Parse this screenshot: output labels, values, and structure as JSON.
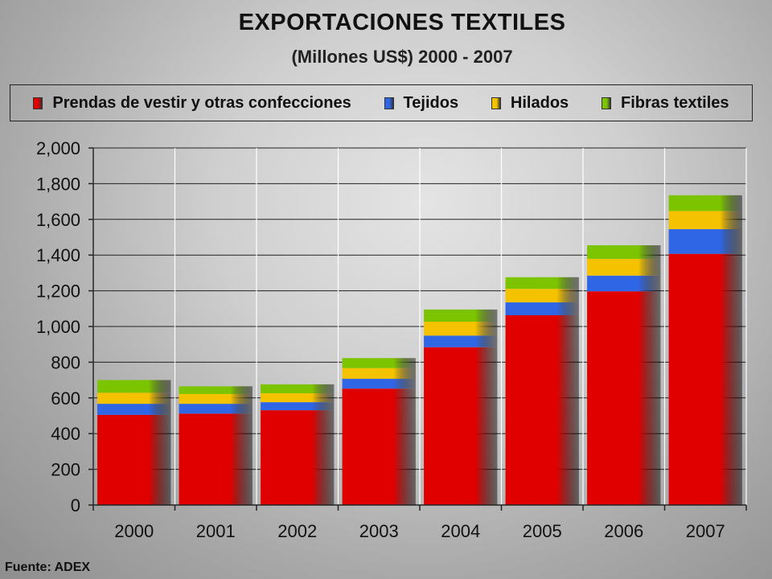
{
  "chart_data": {
    "type": "bar",
    "stacked": true,
    "title": "EXPORTACIONES TEXTILES",
    "subtitle": "(Millones US$) 2000 - 2007",
    "categories": [
      "2000",
      "2001",
      "2002",
      "2003",
      "2004",
      "2005",
      "2006",
      "2007"
    ],
    "series": [
      {
        "name": "Prendas de vestir y otras confecciones",
        "color": "#e00000",
        "values": [
          505,
          512,
          531,
          652,
          884,
          1063,
          1197,
          1407
        ]
      },
      {
        "name": "Tejidos",
        "color": "#2f66e6",
        "values": [
          62,
          55,
          45,
          55,
          65,
          72,
          88,
          138
        ]
      },
      {
        "name": "Hilados",
        "color": "#f5c200",
        "values": [
          62,
          55,
          50,
          60,
          78,
          76,
          94,
          102
        ]
      },
      {
        "name": "Fibras textiles",
        "color": "#7cc400",
        "values": [
          71,
          43,
          50,
          56,
          68,
          65,
          76,
          88
        ]
      }
    ],
    "ylim": [
      0,
      2000
    ],
    "yticks": [
      "0",
      "200",
      "400",
      "600",
      "800",
      "1,000",
      "1,200",
      "1,400",
      "1,600",
      "1,800",
      "2,000"
    ],
    "xlabel": "",
    "ylabel": "",
    "grid": true,
    "legend_position": "top"
  },
  "source": "Fuente: ADEX"
}
